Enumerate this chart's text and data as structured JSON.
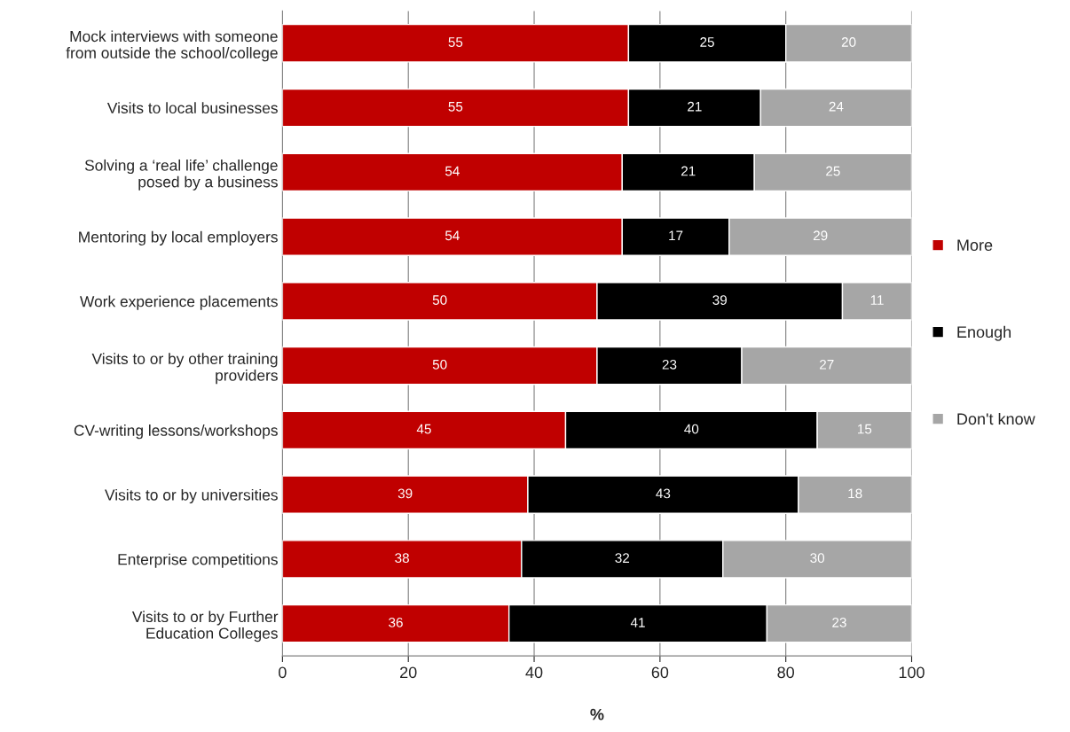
{
  "chart_data": {
    "type": "bar",
    "orientation": "horizontal",
    "stacked": true,
    "xlabel": "%",
    "categories": [
      "Mock interviews with someone from outside the school/college",
      "Visits to local businesses",
      "Solving a ‘real life’ challenge posed by a business",
      "Mentoring by local employers",
      "Work experience placements",
      "Visits to or by other training providers",
      "CV-writing lessons/workshops",
      "Visits to or by universities",
      "Enterprise competitions",
      "Visits to or by Further Education Colleges"
    ],
    "series": [
      {
        "name": "More",
        "color": "#c00000",
        "values": [
          55,
          55,
          54,
          54,
          50,
          50,
          45,
          39,
          38,
          36
        ]
      },
      {
        "name": "Enough",
        "color": "#000000",
        "values": [
          25,
          21,
          21,
          17,
          39,
          23,
          40,
          43,
          32,
          41
        ]
      },
      {
        "name": "Don't know",
        "color": "#a6a6a6",
        "values": [
          20,
          24,
          25,
          29,
          11,
          27,
          15,
          18,
          30,
          23
        ]
      }
    ],
    "xlim": [
      0,
      100
    ],
    "xticks": [
      0,
      20,
      40,
      60,
      80,
      100
    ],
    "grid": "x",
    "legend": "right",
    "data_labels": true
  }
}
